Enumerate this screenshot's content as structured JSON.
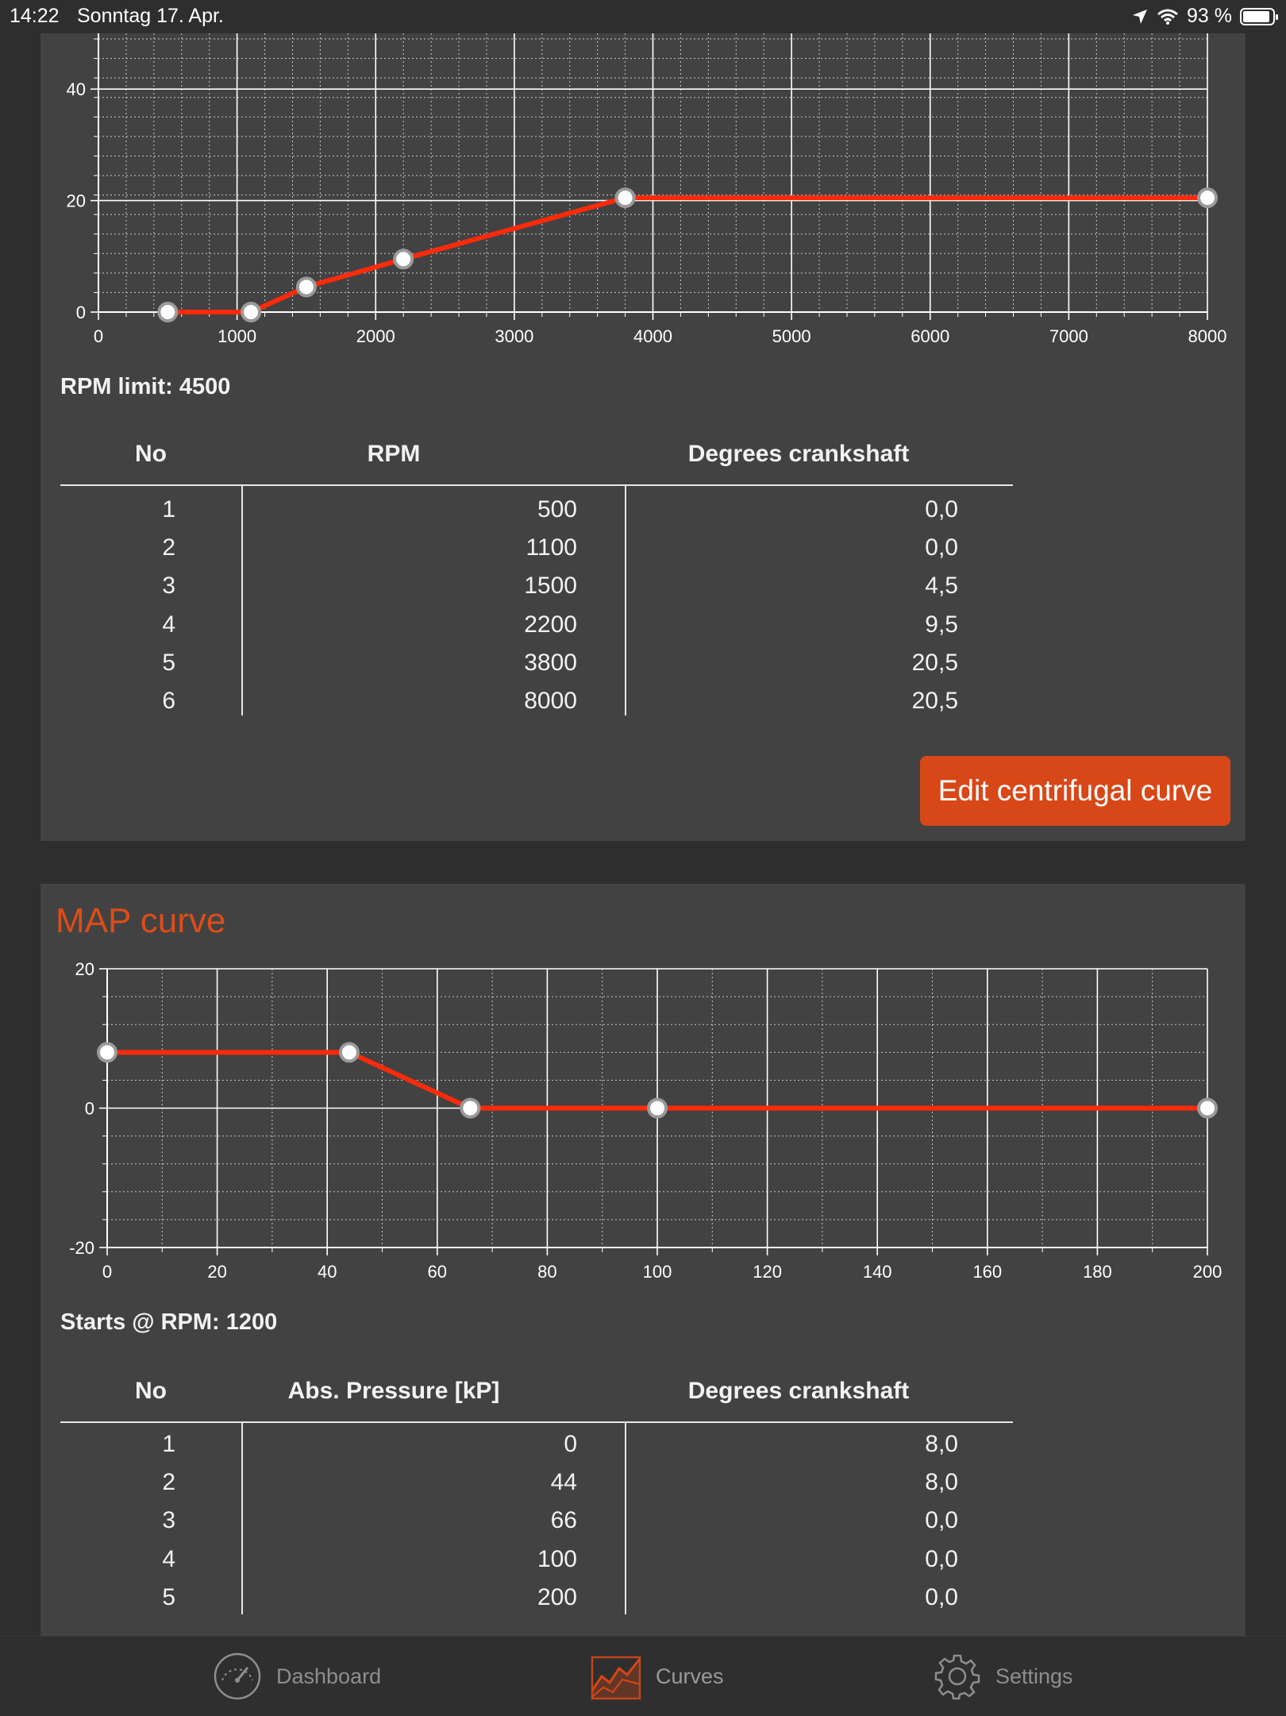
{
  "status": {
    "time": "14:22",
    "date": "Sonntag 17. Apr.",
    "battery": "93 %",
    "battery_level": 0.93
  },
  "centrifugal": {
    "info_line": "RPM limit: 4500",
    "table": {
      "headers": [
        "No",
        "RPM",
        "Degrees crankshaft"
      ],
      "rows": [
        [
          "1",
          "500",
          "0,0"
        ],
        [
          "2",
          "1100",
          "0,0"
        ],
        [
          "3",
          "1500",
          "4,5"
        ],
        [
          "4",
          "2200",
          "9,5"
        ],
        [
          "5",
          "3800",
          "20,5"
        ],
        [
          "6",
          "8000",
          "20,5"
        ]
      ]
    },
    "edit_button": "Edit centrifugal curve"
  },
  "map": {
    "title": "MAP curve",
    "info_line": "Starts @ RPM: 1200",
    "table": {
      "headers": [
        "No",
        "Abs. Pressure [kP]",
        "Degrees crankshaft"
      ],
      "rows": [
        [
          "1",
          "0",
          "8,0"
        ],
        [
          "2",
          "44",
          "8,0"
        ],
        [
          "3",
          "66",
          "0,0"
        ],
        [
          "4",
          "100",
          "0,0"
        ],
        [
          "5",
          "200",
          "0,0"
        ]
      ]
    }
  },
  "tabs": [
    {
      "label": "Dashboard",
      "icon": "speedometer-icon",
      "active": false
    },
    {
      "label": "Curves",
      "icon": "chart-icon",
      "active": true
    },
    {
      "label": "Settings",
      "icon": "gear-icon",
      "active": false
    }
  ],
  "colors": {
    "accent": "#dd4d17",
    "curve": "#ff2a0a",
    "button": "#d84717",
    "card": "#424242",
    "background": "#2e2e2e"
  },
  "chart_data": [
    {
      "type": "line",
      "x": [
        500,
        1100,
        1500,
        2200,
        3800,
        8000
      ],
      "y": [
        0.0,
        0.0,
        4.5,
        9.5,
        20.5,
        20.5
      ],
      "xlim": [
        0,
        8000
      ],
      "ylim": [
        0,
        50
      ],
      "xticks": [
        0,
        1000,
        2000,
        3000,
        4000,
        5000,
        6000,
        7000,
        8000
      ],
      "yticks": [
        0,
        20,
        40
      ],
      "grid": true
    },
    {
      "type": "line",
      "x": [
        0,
        44,
        66,
        100,
        200
      ],
      "y": [
        8.0,
        8.0,
        0.0,
        0.0,
        0.0
      ],
      "xlim": [
        0,
        200
      ],
      "ylim": [
        -20,
        20
      ],
      "xticks": [
        0,
        20,
        40,
        60,
        80,
        100,
        120,
        140,
        160,
        180,
        200
      ],
      "yticks": [
        -20,
        0,
        20
      ],
      "grid": true
    }
  ]
}
